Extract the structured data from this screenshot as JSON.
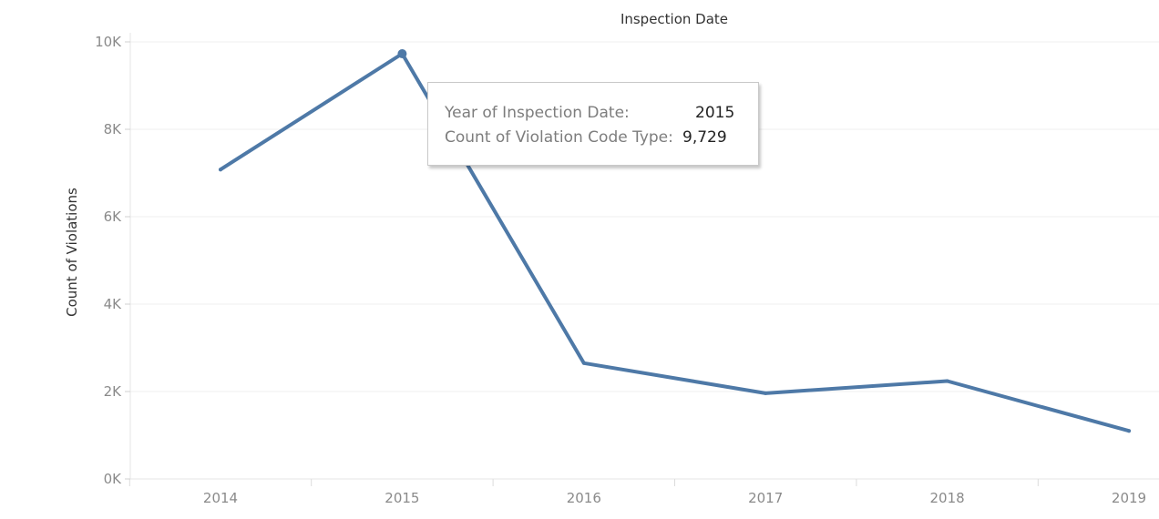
{
  "chart_data": {
    "type": "line",
    "title": "Inspection Date",
    "xlabel": "",
    "ylabel": "Count of Violations",
    "categories": [
      "2014",
      "2015",
      "2016",
      "2017",
      "2018",
      "2019"
    ],
    "series": [
      {
        "values": [
          7080,
          9729,
          2650,
          1960,
          2240,
          1100
        ],
        "color": "#4e79a7"
      }
    ],
    "y_ticks": [
      {
        "value": 0,
        "label": "0K"
      },
      {
        "value": 2000,
        "label": "2K"
      },
      {
        "value": 4000,
        "label": "4K"
      },
      {
        "value": 6000,
        "label": "6K"
      },
      {
        "value": 8000,
        "label": "8K"
      },
      {
        "value": 10000,
        "label": "10K"
      }
    ],
    "ylim": [
      0,
      10000
    ],
    "grid": true,
    "highlighted_point": "2015"
  },
  "tooltip": {
    "year_label": "Year of Inspection Date:",
    "year_value": "2015",
    "count_label": "Count of Violation Code Type:",
    "count_value": "9,729"
  }
}
